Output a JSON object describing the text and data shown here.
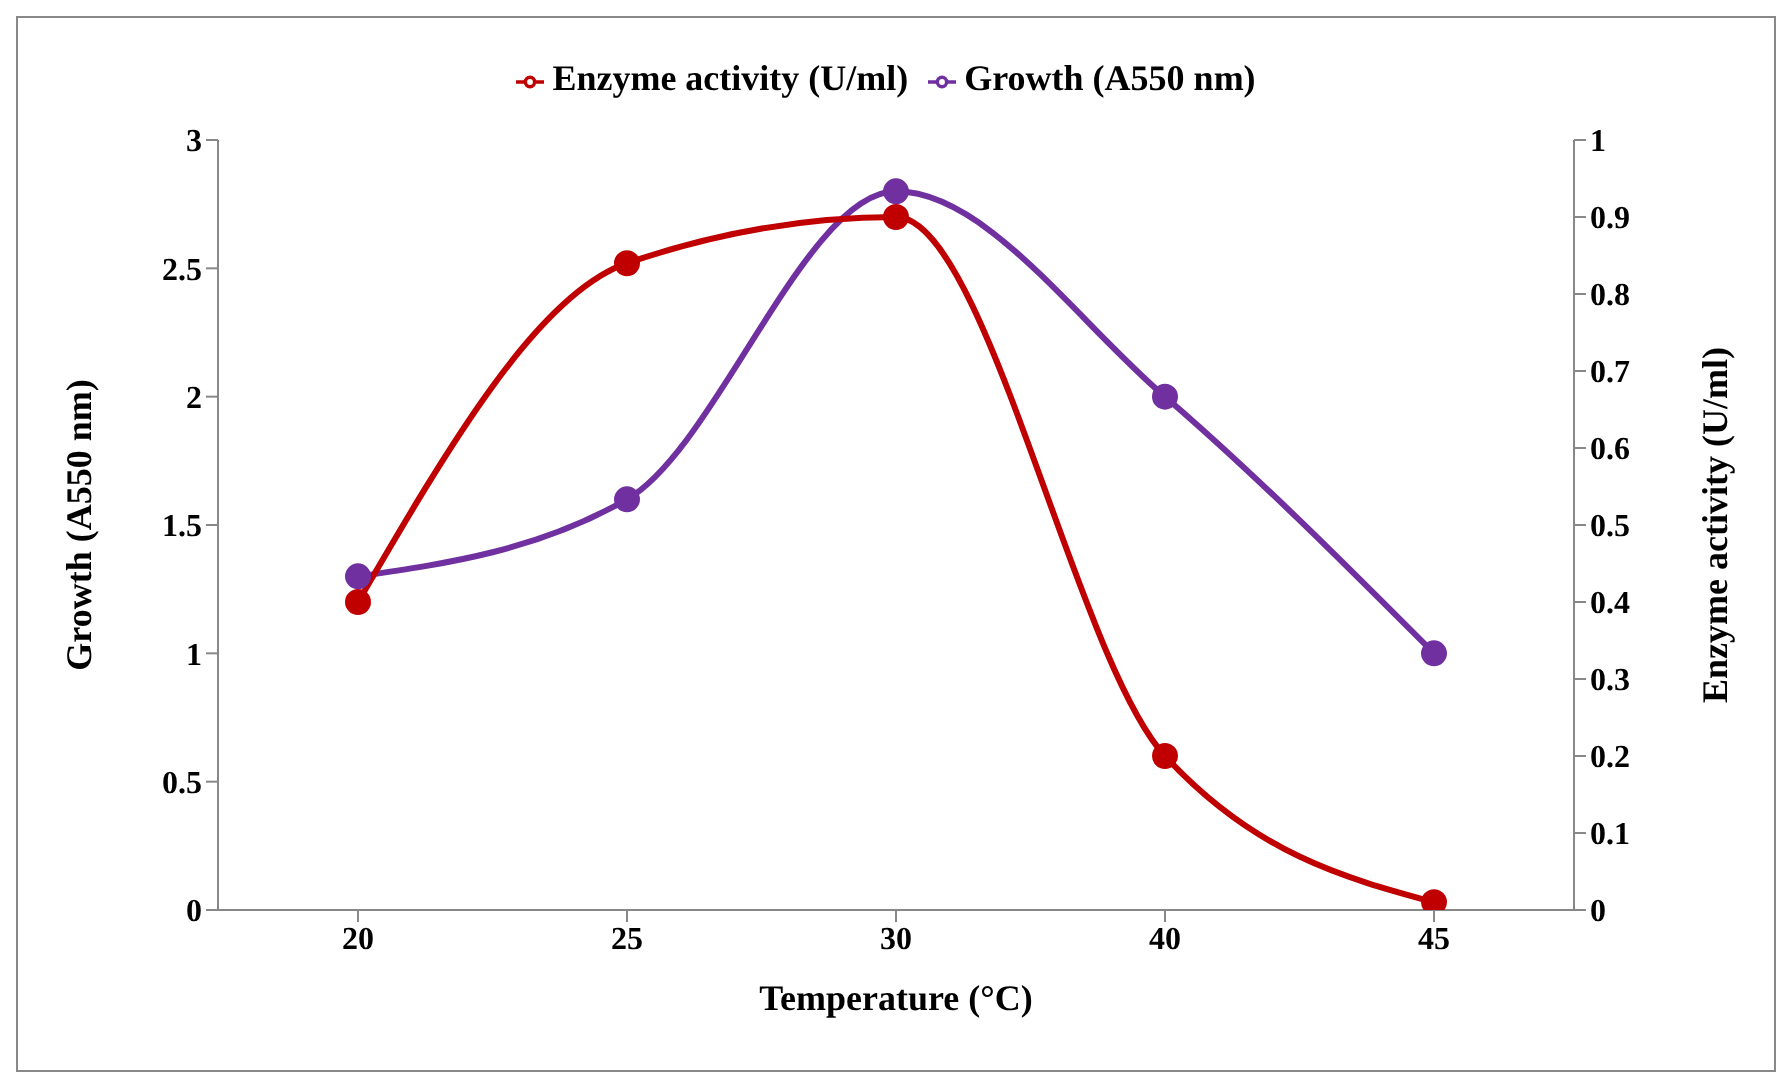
{
  "chart_data": {
    "type": "line",
    "xlabel": "Temperature (°C)",
    "ylabel": "Growth (A550 nm)",
    "y2label": "Enzyme activity (U/ml)",
    "categories": [
      "20",
      "25",
      "30",
      "40",
      "45"
    ],
    "series": [
      {
        "name": "Growth (A550 nm)",
        "color": "#7030a0",
        "values": [
          1.3,
          1.6,
          2.8,
          2.0,
          1.0
        ]
      },
      {
        "name": "Enzyme activity (U/ml)",
        "color": "#c00000",
        "values": [
          0.4,
          0.84,
          0.9,
          0.2,
          0.01
        ],
        "axis": "y2"
      }
    ],
    "ylim": [
      0,
      3
    ],
    "yticks": [
      0,
      0.5,
      1,
      1.5,
      2,
      2.5,
      3
    ],
    "y2lim": [
      0,
      1
    ],
    "y2ticks": [
      0,
      0.1,
      0.2,
      0.3,
      0.4,
      0.5,
      0.6,
      0.7,
      0.8,
      0.9,
      1
    ],
    "legend": "top",
    "marker": "circle",
    "line_style": "solid",
    "grid": false
  }
}
